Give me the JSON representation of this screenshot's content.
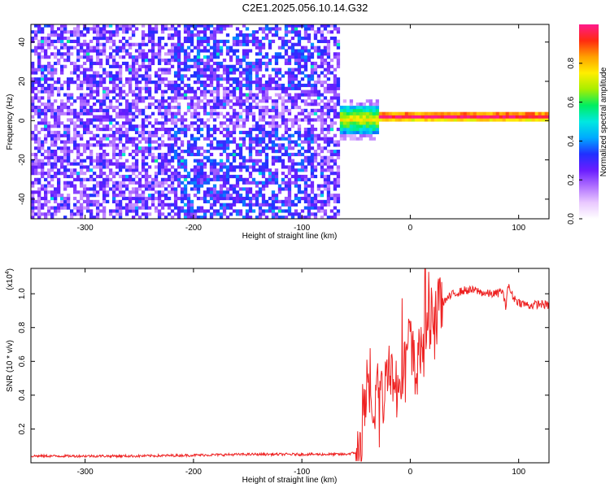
{
  "title": "C2E1.2025.056.10.14.G32",
  "chart_data": [
    {
      "type": "heatmap",
      "xlabel": "Height of straight line (km)",
      "ylabel": "Frequency (Hz)",
      "xlim": [
        -350,
        128
      ],
      "ylim": [
        -50,
        49
      ],
      "xticks": [
        -300,
        -200,
        -100,
        0,
        100
      ],
      "yticks": [
        -40,
        -20,
        0,
        20,
        40
      ],
      "colorbar": {
        "label": "Normalized spectral amplitude",
        "range": [
          0,
          1
        ],
        "ticks": [
          "0.0",
          "0.2",
          "0.4",
          "0.6",
          "0.8"
        ],
        "colors": [
          "#ffffff",
          "#e9c8ff",
          "#b070ff",
          "#6a1dff",
          "#2030ff",
          "#00aaff",
          "#00e8e0",
          "#00ee60",
          "#a8ee00",
          "#ffee00",
          "#ffa000",
          "#ff2a10",
          "#ff1a8c"
        ]
      },
      "regions": [
        {
          "x_range": [
            -350,
            -67
          ],
          "freq_range": [
            -50,
            49
          ],
          "amplitude": "0.05-0.3",
          "note": "broadband scattered"
        },
        {
          "x_range": [
            -70,
            -30
          ],
          "freq_center": 0,
          "freq_halfwidth": 7,
          "amplitude": "0.3-0.6"
        },
        {
          "x_range": [
            -30,
            128
          ],
          "freq_center": 1.5,
          "freq_halfwidth": 2,
          "amplitude": "0.6-1.0"
        }
      ]
    },
    {
      "type": "line",
      "xlabel": "Height of straight line (km)",
      "ylabel": "SNR (10 * v/v)",
      "yscale_note": "(x10",
      "yscale_exp": "4",
      "xlim": [
        -350,
        128
      ],
      "ylim": [
        0,
        1.15
      ],
      "xticks": [
        -300,
        -200,
        -100,
        0,
        100
      ],
      "yticks": [
        "0.2",
        "0.4",
        "0.6",
        "0.8",
        "1.0"
      ],
      "color": "#ee2222",
      "x": [
        -350,
        -300,
        -250,
        -200,
        -150,
        -100,
        -80,
        -60,
        -50,
        -45,
        -40,
        -35,
        -30,
        -25,
        -20,
        -15,
        -10,
        -5,
        0,
        5,
        10,
        15,
        20,
        25,
        30,
        40,
        50,
        60,
        70,
        80,
        85,
        88,
        90,
        95,
        100,
        110,
        120,
        128
      ],
      "values": [
        0.04,
        0.04,
        0.04,
        0.045,
        0.05,
        0.05,
        0.05,
        0.05,
        0.06,
        0.1,
        0.45,
        0.2,
        0.5,
        0.35,
        0.65,
        0.45,
        0.55,
        0.6,
        0.75,
        0.5,
        0.72,
        0.8,
        0.88,
        0.92,
        0.95,
        1.0,
        1.02,
        1.02,
        1.0,
        1.0,
        1.02,
        0.92,
        1.05,
        0.98,
        0.95,
        0.93,
        0.94,
        0.93
      ]
    }
  ]
}
